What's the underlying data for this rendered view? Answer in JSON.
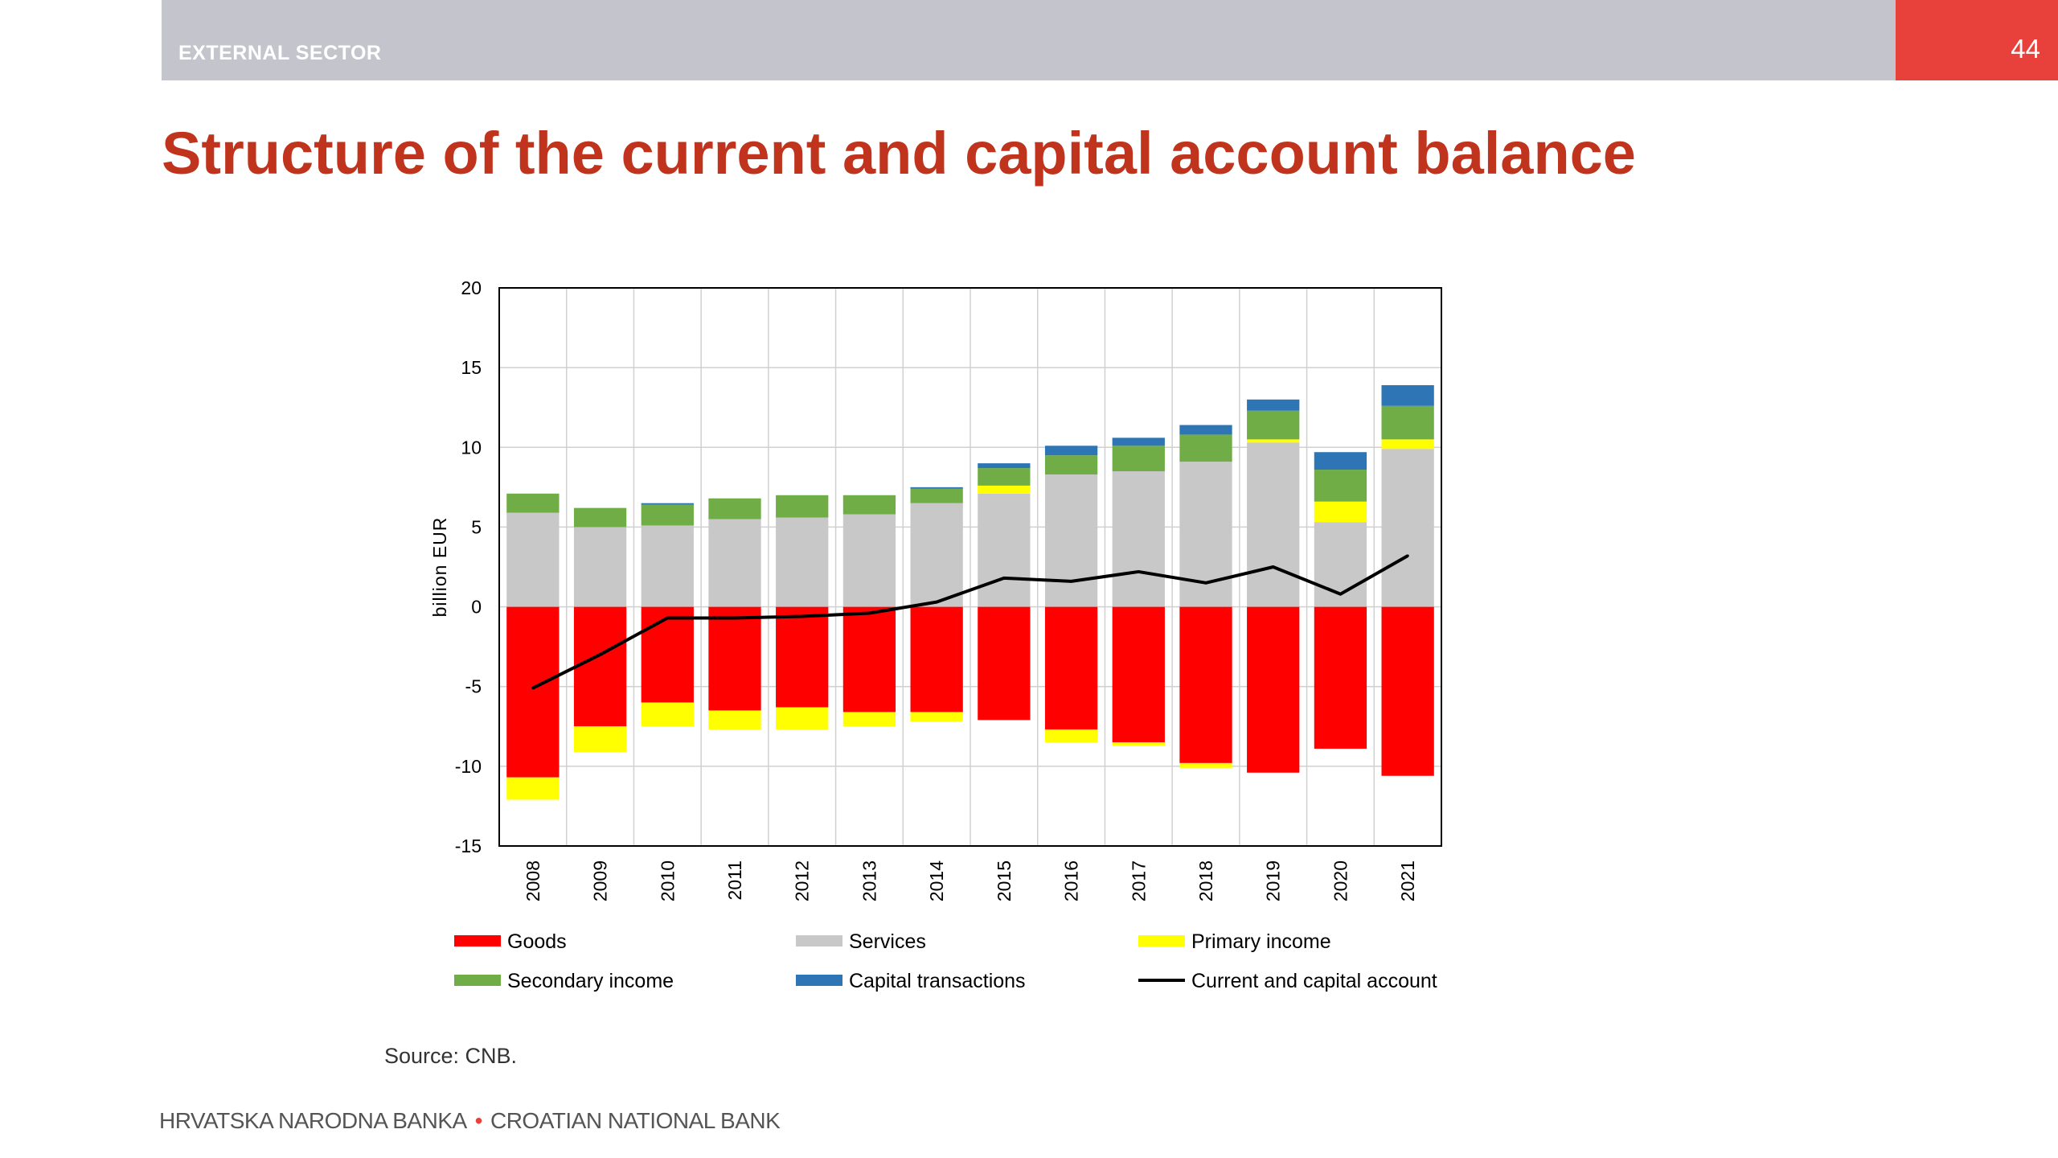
{
  "header": {
    "section": "EXTERNAL SECTOR",
    "page_number": "44",
    "accent_color": "#e8413b",
    "bar_color": "#c4c5cc"
  },
  "title": "Structure of the current and capital account balance",
  "source": "Source: CNB.",
  "footer": {
    "left": "HRVATSKA NARODNA BANKA",
    "separator": "•",
    "right": "CROATIAN NATIONAL BANK"
  },
  "chart_data": {
    "type": "bar",
    "stacked": true,
    "title": "",
    "xlabel": "",
    "ylabel": "billion EUR",
    "ylim": [
      -15,
      20
    ],
    "yticks": [
      20,
      15,
      10,
      5,
      0,
      -5,
      -10,
      -15
    ],
    "grid": true,
    "legend_position": "bottom",
    "categories": [
      "2008",
      "2009",
      "2010",
      "2011",
      "2012",
      "2013",
      "2014",
      "2015",
      "2016",
      "2017",
      "2018",
      "2019",
      "2020",
      "2021"
    ],
    "series": [
      {
        "name": "Goods",
        "color": "#ff0000",
        "kind": "bar",
        "values": [
          -10.7,
          -7.5,
          -6.0,
          -6.5,
          -6.3,
          -6.6,
          -6.6,
          -7.1,
          -7.7,
          -8.5,
          -9.8,
          -10.4,
          -8.9,
          -10.6
        ]
      },
      {
        "name": "Services",
        "color": "#c8c8c8",
        "kind": "bar",
        "values": [
          5.9,
          5.0,
          5.1,
          5.5,
          5.6,
          5.8,
          6.5,
          7.1,
          8.3,
          8.5,
          9.1,
          10.3,
          5.3,
          9.9
        ]
      },
      {
        "name": "Primary income",
        "color": "#ffff00",
        "kind": "bar",
        "values": [
          -1.4,
          -1.6,
          -1.5,
          -1.2,
          -1.4,
          -0.9,
          -0.6,
          0.5,
          -0.8,
          -0.2,
          -0.3,
          0.2,
          1.3,
          0.6
        ]
      },
      {
        "name": "Secondary income",
        "color": "#70ad47",
        "kind": "bar",
        "values": [
          1.2,
          1.2,
          1.3,
          1.3,
          1.4,
          1.2,
          0.9,
          1.1,
          1.2,
          1.6,
          1.7,
          1.8,
          2.0,
          2.1
        ]
      },
      {
        "name": "Capital transactions",
        "color": "#2e75b6",
        "kind": "bar",
        "values": [
          0.0,
          0.0,
          0.1,
          0.0,
          0.0,
          0.0,
          0.1,
          0.3,
          0.6,
          0.5,
          0.6,
          0.7,
          1.1,
          1.3
        ]
      },
      {
        "name": "Current and capital account",
        "color": "#000000",
        "kind": "line",
        "values": [
          -5.1,
          -3.0,
          -0.7,
          -0.7,
          -0.6,
          -0.4,
          0.3,
          1.8,
          1.6,
          2.2,
          1.5,
          2.5,
          0.8,
          3.2
        ]
      }
    ]
  }
}
